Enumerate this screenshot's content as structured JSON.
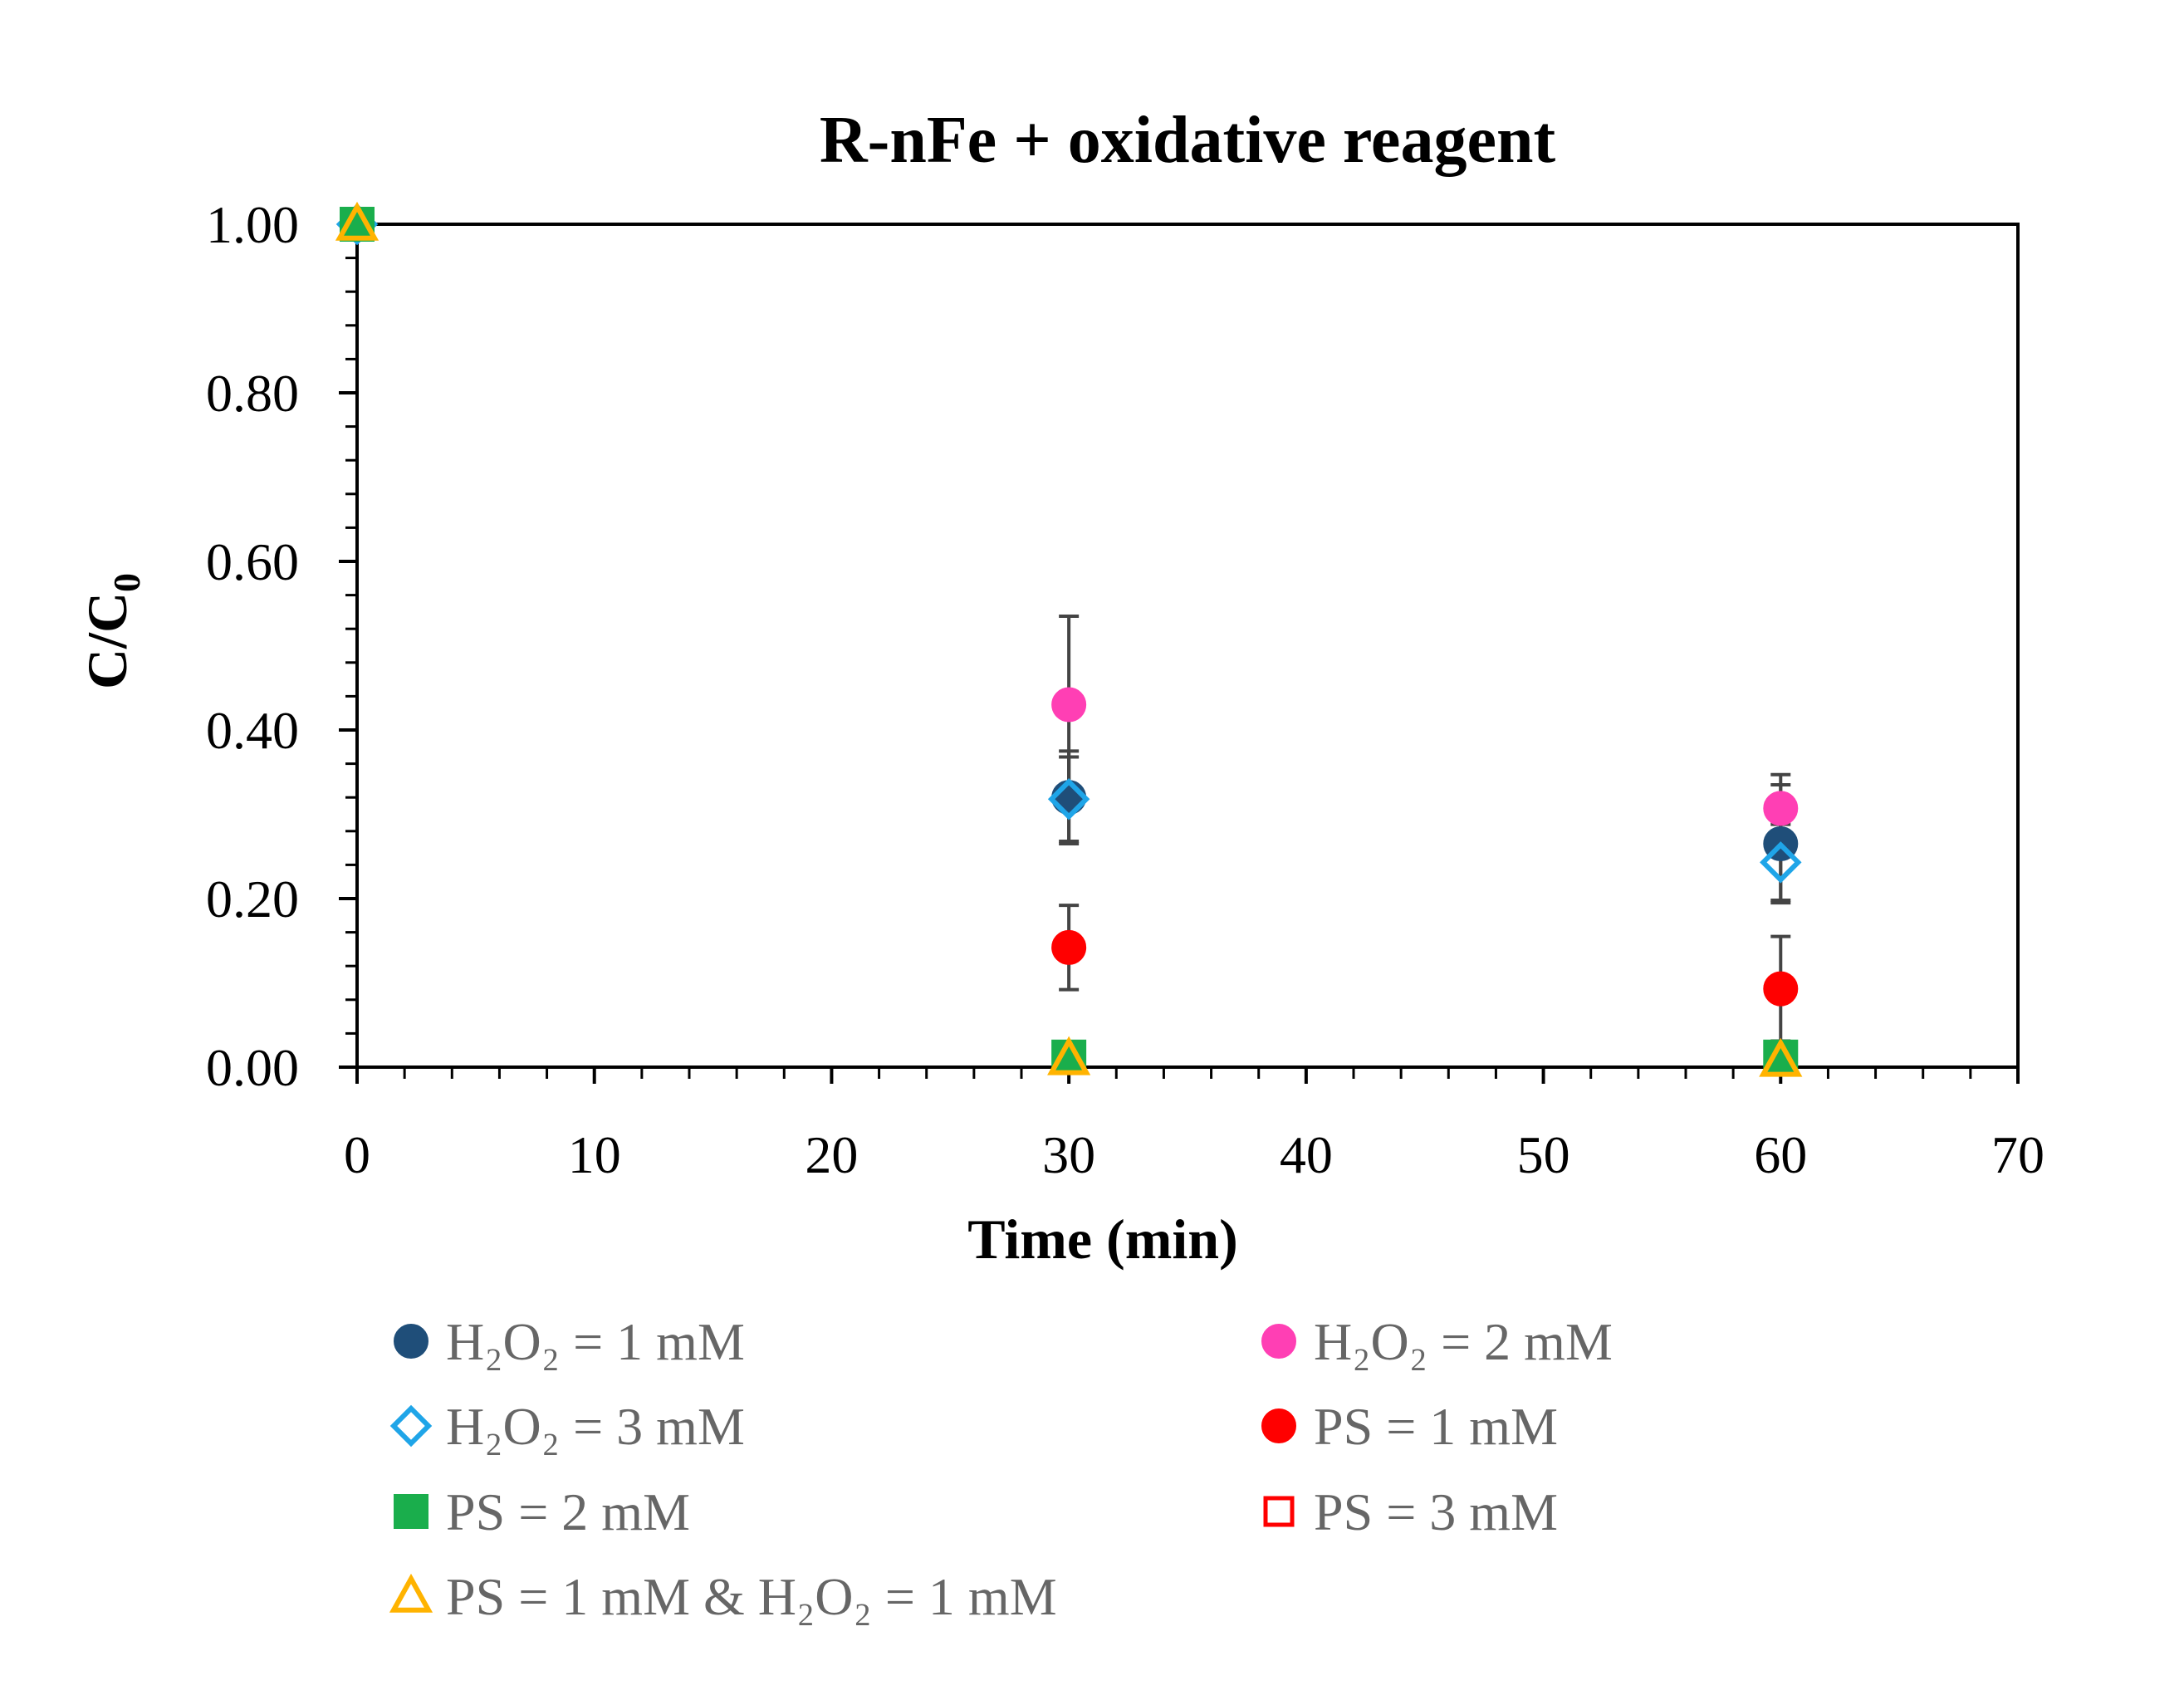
{
  "chart_data": {
    "type": "scatter",
    "title": "R-nFe + oxidative reagent",
    "xlabel": "Time (min)",
    "ylabel_main": "C/C",
    "ylabel_sub": "0",
    "xlim": [
      0,
      70
    ],
    "ylim": [
      0,
      1
    ],
    "x_ticks": [
      0,
      10,
      20,
      30,
      40,
      50,
      60,
      70
    ],
    "x_tick_labels": [
      "0",
      "10",
      "20",
      "30",
      "40",
      "50",
      "60",
      "70"
    ],
    "y_ticks": [
      0,
      0.2,
      0.4,
      0.6,
      0.8,
      1.0
    ],
    "y_tick_labels": [
      "0.00",
      "0.20",
      "0.40",
      "0.60",
      "0.80",
      "1.00"
    ],
    "grid": false,
    "legend_position": "bottom",
    "series": [
      {
        "key": "h2o2_1",
        "legend": "H₂O₂ = 1 mM",
        "marker": "circle",
        "fill": "#1f4e79",
        "stroke": "#1f4e79",
        "x": [
          0,
          30,
          60
        ],
        "y": [
          1.0,
          0.32,
          0.265
        ],
        "err": [
          0,
          0.055,
          0.07
        ]
      },
      {
        "key": "h2o2_2",
        "legend": "H₂O₂ = 2 mM",
        "marker": "circle",
        "fill": "#ff3fb4",
        "stroke": "#ff3fb4",
        "x": [
          0,
          30,
          60
        ],
        "y": [
          1.0,
          0.43,
          0.307
        ],
        "err": [
          0,
          0.105,
          0.04
        ]
      },
      {
        "key": "h2o2_3",
        "legend": "H₂O₂ = 3 mM",
        "marker": "diamond-open",
        "fill": "none",
        "stroke": "#1fa5e8",
        "x": [
          0,
          30,
          60
        ],
        "y": [
          1.0,
          0.318,
          0.243
        ],
        "err": [
          0,
          0.05,
          0.045
        ]
      },
      {
        "key": "ps_1",
        "legend": "PS = 1 mM",
        "marker": "circle",
        "fill": "#ff0000",
        "stroke": "#ff0000",
        "x": [
          0,
          30,
          60
        ],
        "y": [
          1.0,
          0.142,
          0.093
        ],
        "err": [
          0,
          0.05,
          0.062
        ]
      },
      {
        "key": "ps_2",
        "legend": "PS = 2 mM",
        "marker": "square",
        "fill": "#1aae4c",
        "stroke": "#1aae4c",
        "x": [
          0,
          30,
          60
        ],
        "y": [
          1.0,
          0.012,
          0.012
        ],
        "err": [
          0,
          0,
          0
        ]
      },
      {
        "key": "ps_3",
        "legend": "PS = 3 mM",
        "marker": "square-open",
        "fill": "none",
        "stroke": "#ff0000",
        "x": [
          0,
          30,
          60
        ],
        "y": [
          1.0,
          0.01,
          0.01
        ],
        "err": [
          0,
          0,
          0
        ]
      },
      {
        "key": "ps1_h2o2_1",
        "legend": "PS = 1 mM & H₂O₂ = 1 mM",
        "marker": "triangle-open",
        "fill": "none",
        "stroke": "#ffb300",
        "x": [
          0,
          30,
          60
        ],
        "y": [
          1.0,
          0.01,
          0.008
        ],
        "err": [
          0,
          0,
          0
        ]
      }
    ]
  }
}
